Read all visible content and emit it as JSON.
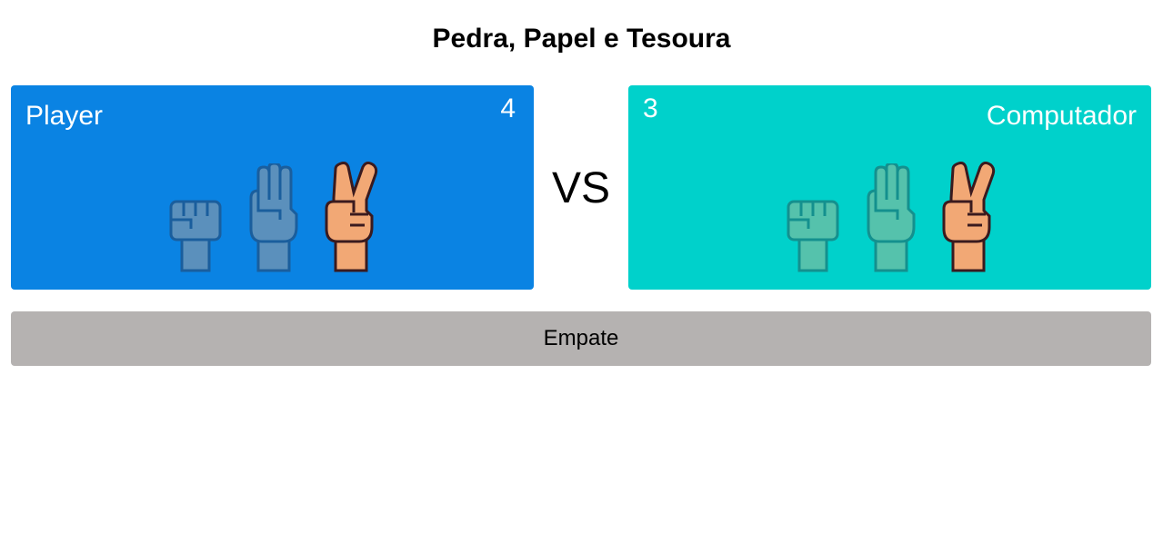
{
  "title": "Pedra, Papel e Tesoura",
  "vs_label": "VS",
  "player": {
    "name": "Player",
    "score": "4",
    "color": "#0a83e3",
    "choices": [
      "rock-icon",
      "paper-icon",
      "scissors-icon"
    ],
    "selected": "scissors-icon"
  },
  "computer": {
    "name": "Computador",
    "score": "3",
    "color": "#00d1cb",
    "choices": [
      "rock-icon",
      "paper-icon",
      "scissors-icon"
    ],
    "selected": "scissors-icon"
  },
  "result": {
    "label": "Empate",
    "color": "#b5b2b1"
  },
  "colors": {
    "skin": "#f2a875",
    "outline": "#3a1a1e"
  }
}
